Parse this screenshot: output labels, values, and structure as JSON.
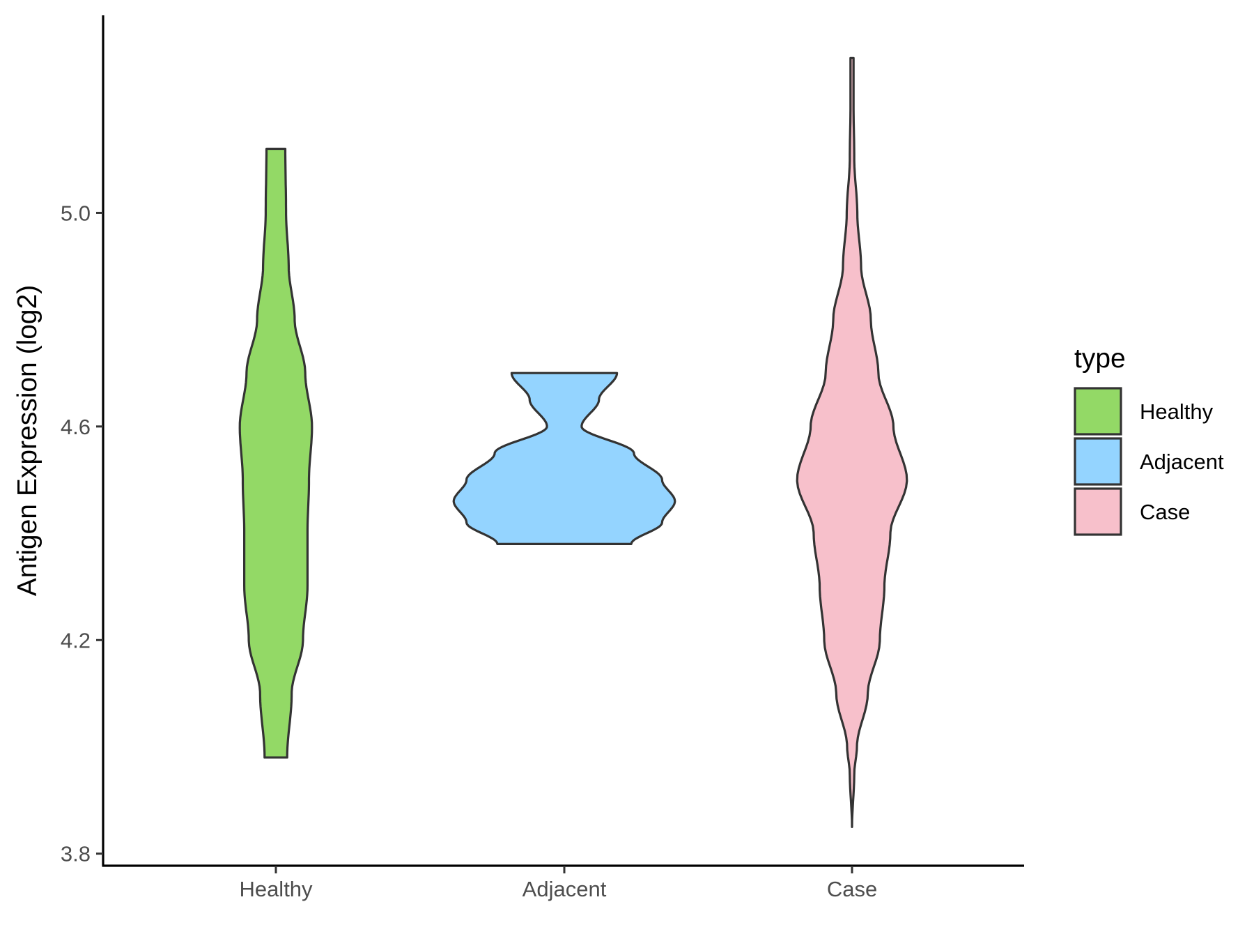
{
  "chart_data": {
    "type": "violin",
    "title": "",
    "xlabel": "",
    "ylabel": "Antigen Expression (log2)",
    "ylim": [
      3.78,
      5.37
    ],
    "yticks": [
      3.8,
      4.2,
      4.6,
      5.0
    ],
    "ytick_labels": [
      "3.8",
      "4.2",
      "4.6",
      "5.0"
    ],
    "categories": [
      "Healthy",
      "Adjacent",
      "Case"
    ],
    "colors": {
      "Healthy": "#93d966",
      "Adjacent": "#94d4ff",
      "Case": "#f7c0cb"
    },
    "grid": false,
    "legend": {
      "title": "type",
      "position": "right",
      "entries": [
        "Healthy",
        "Adjacent",
        "Case"
      ]
    },
    "series": [
      {
        "name": "Healthy",
        "min": 3.98,
        "max": 5.12,
        "profile": [
          [
            3.98,
            0.3
          ],
          [
            4.1,
            0.42
          ],
          [
            4.2,
            0.72
          ],
          [
            4.3,
            0.84
          ],
          [
            4.4,
            0.84
          ],
          [
            4.5,
            0.88
          ],
          [
            4.6,
            0.96
          ],
          [
            4.7,
            0.78
          ],
          [
            4.8,
            0.5
          ],
          [
            4.9,
            0.34
          ],
          [
            5.0,
            0.27
          ],
          [
            5.12,
            0.25
          ]
        ]
      },
      {
        "name": "Adjacent",
        "min": 4.38,
        "max": 4.7,
        "profile": [
          [
            4.38,
            1.78
          ],
          [
            4.42,
            2.6
          ],
          [
            4.46,
            2.94
          ],
          [
            4.5,
            2.6
          ],
          [
            4.55,
            1.85
          ],
          [
            4.6,
            0.46
          ],
          [
            4.65,
            0.92
          ],
          [
            4.7,
            1.4
          ]
        ]
      },
      {
        "name": "Case",
        "min": 3.85,
        "max": 5.29,
        "profile": [
          [
            3.85,
            0.0
          ],
          [
            3.95,
            0.06
          ],
          [
            4.0,
            0.13
          ],
          [
            4.1,
            0.42
          ],
          [
            4.2,
            0.74
          ],
          [
            4.3,
            0.86
          ],
          [
            4.4,
            1.02
          ],
          [
            4.5,
            1.46
          ],
          [
            4.6,
            1.1
          ],
          [
            4.7,
            0.7
          ],
          [
            4.8,
            0.5
          ],
          [
            4.9,
            0.24
          ],
          [
            5.0,
            0.14
          ],
          [
            5.1,
            0.06
          ],
          [
            5.2,
            0.04
          ],
          [
            5.29,
            0.04
          ]
        ]
      }
    ]
  }
}
